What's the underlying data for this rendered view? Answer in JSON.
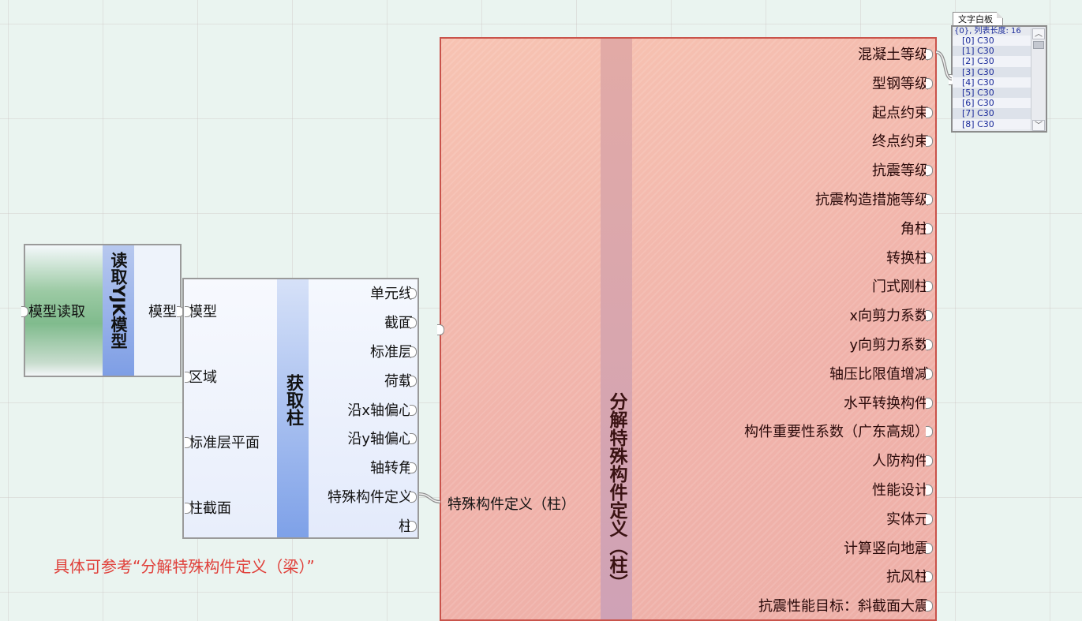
{
  "read_yjk": {
    "title": "读取YJK模型",
    "inputs": [
      "模型读取"
    ],
    "outputs": [
      "模型"
    ]
  },
  "get_column": {
    "title": "获取柱",
    "inputs": [
      "模型",
      "区域",
      "标准层平面",
      "柱截面"
    ],
    "outputs": [
      "单元线",
      "截面",
      "标准层",
      "荷载",
      "沿x轴偏心",
      "沿y轴偏心",
      "轴转角",
      "特殊构件定义",
      "柱"
    ]
  },
  "decompose": {
    "title": "分解特殊构件定义（柱）",
    "inputs": [
      "特殊构件定义（柱）"
    ],
    "outputs": [
      "混凝土等级",
      "型钢等级",
      "起点约束",
      "终点约束",
      "抗震等级",
      "抗震构造措施等级",
      "角柱",
      "转换柱",
      "门式刚柱",
      "x向剪力系数",
      "y向剪力系数",
      "轴压比限值增减",
      "水平转换构件",
      "构件重要性系数（广东高规）",
      "人防构件",
      "性能设计",
      "实体元",
      "计算竖向地震",
      "抗风柱",
      "抗震性能目标：斜截面大震"
    ]
  },
  "text_panel": {
    "tab_label": "文字白板",
    "header": "{0}, 列表长度: 16",
    "rows": [
      "[0] C30",
      "[1] C30",
      "[2] C30",
      "[3] C30",
      "[4] C30",
      "[5] C30",
      "[6] C30",
      "[7] C30",
      "[8] C30"
    ]
  },
  "note": "具体可参考“分解特殊构件定义（梁）”",
  "colors": {
    "note_red": "#e0403a",
    "decompose_border": "#c9534b",
    "title_bar_blue": "#7e9ee5",
    "input_green": "#80bb8d"
  }
}
